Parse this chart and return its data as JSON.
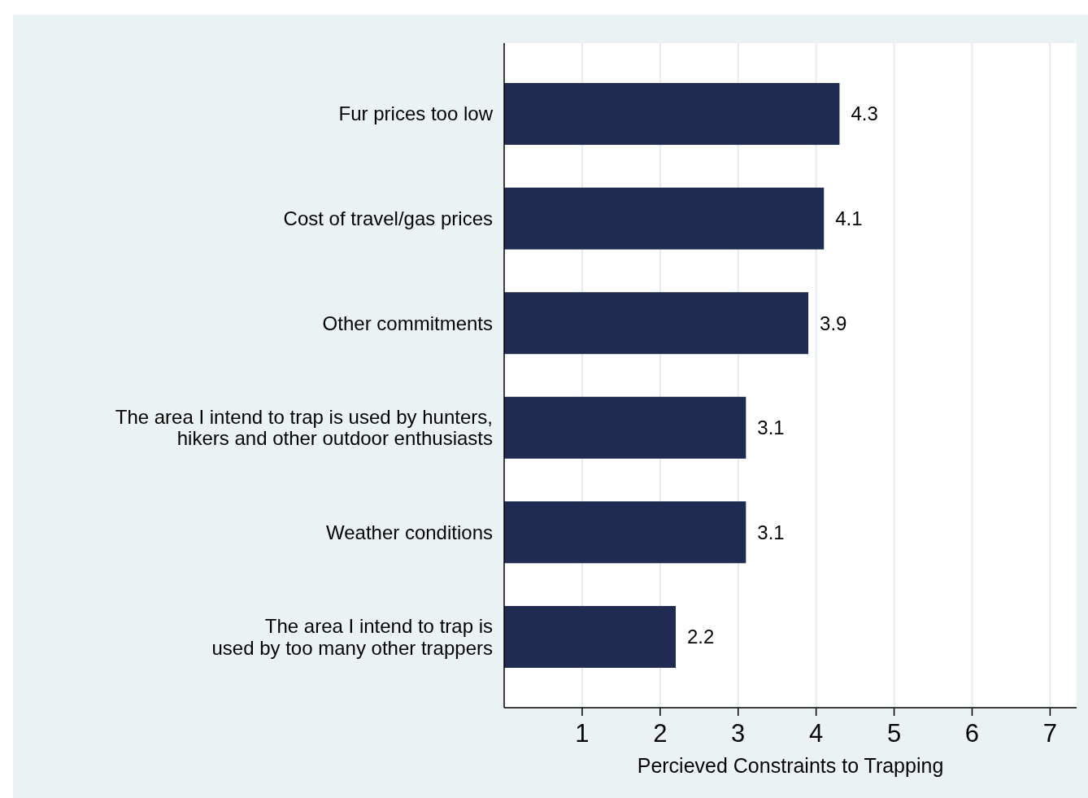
{
  "chart_data": {
    "type": "bar",
    "orientation": "horizontal",
    "xlabel": "Percieved Constraints to Trapping",
    "categories": [
      "Fur prices too low",
      "Cost of travel/gas prices",
      "Other commitments",
      "The area I intend to trap is used by hunters,\nhikers and other outdoor enthusiasts",
      "Weather conditions",
      "The area I intend to trap is\nused by too many other trappers"
    ],
    "values": [
      4.3,
      4.1,
      3.9,
      3.1,
      3.1,
      2.2
    ],
    "color": "#1f2b50",
    "xlim": [
      0,
      7.34
    ],
    "xticks": [
      1,
      2,
      3,
      4,
      5,
      6,
      7
    ],
    "grid": "x",
    "data_labels": true
  }
}
